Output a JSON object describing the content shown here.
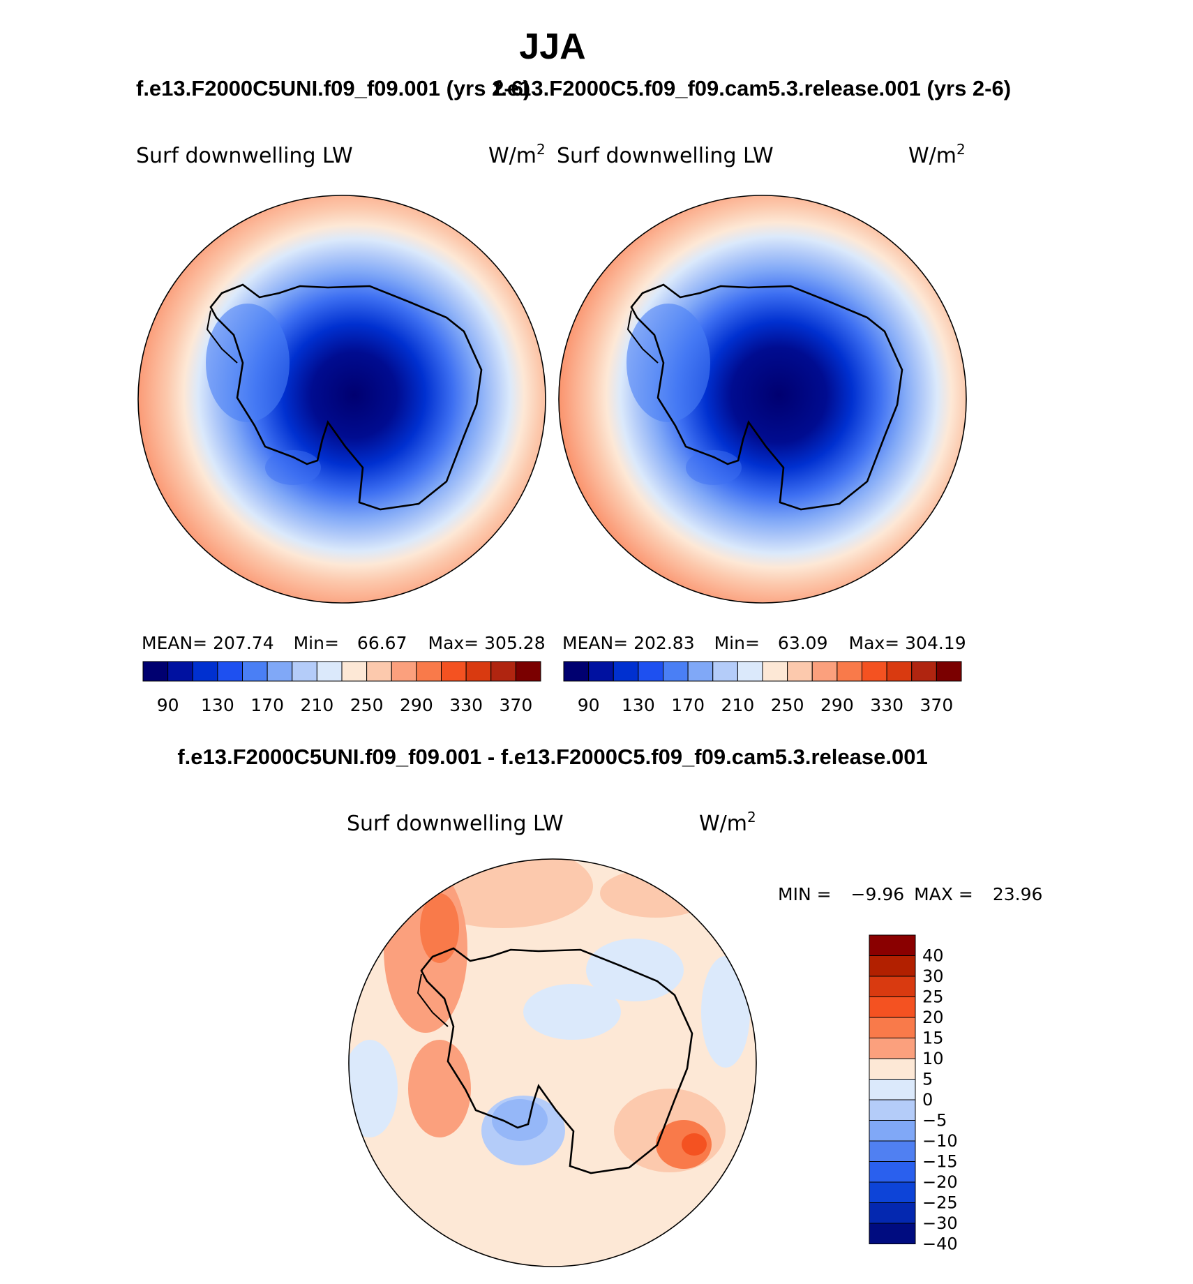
{
  "chart_data": {
    "type": "heatmap",
    "title": "JJA",
    "left_case": "f.e13.F2000C5UNI.f09_f09.001 (yrs 2-6)",
    "right_case": "f.e13.F2000C5.f09_f09.cam5.3.release.001 (yrs 2-6)",
    "diff_title": "f.e13.F2000C5UNI.f09_f09.001 - f.e13.F2000C5.f09_f09.cam5.3.release.001",
    "panels": [
      {
        "variable": "Surf downwelling LW",
        "units": "W/m",
        "units_sup": "2",
        "stats": {
          "mean_label": "MEAN=",
          "mean": "207.74",
          "min_label": "Min=",
          "min": "66.67",
          "max_label": "Max=",
          "max": "305.28"
        }
      },
      {
        "variable": "Surf downwelling LW",
        "units": "W/m",
        "units_sup": "2",
        "stats": {
          "mean_label": "MEAN=",
          "mean": "202.83",
          "min_label": "Min=",
          "min": "63.09",
          "max_label": "Max=",
          "max": "304.19"
        }
      }
    ],
    "abs_colorbar": {
      "tick_labels": [
        "90",
        "130",
        "170",
        "210",
        "250",
        "290",
        "330",
        "370"
      ],
      "colors": [
        "#000070",
        "#0011a0",
        "#0030d0",
        "#1e50f0",
        "#4a7ff5",
        "#80a8f7",
        "#b4ccf9",
        "#dbe9fb",
        "#fde8d6",
        "#fcc9ad",
        "#fba07d",
        "#f97a4a",
        "#f45221",
        "#d93a10",
        "#b02510",
        "#7a0000"
      ]
    },
    "diff": {
      "variable": "Surf downwelling LW",
      "units": "W/m",
      "units_sup": "2",
      "min_label": "MIN =",
      "min": "−9.96",
      "max_label": "MAX =",
      "max": "23.96",
      "colorbar_labels": [
        "40",
        "30",
        "25",
        "20",
        "15",
        "10",
        "5",
        "0",
        "−5",
        "−10",
        "−15",
        "−20",
        "−25",
        "−30",
        "−40"
      ],
      "colorbar_colors": [
        "#8a0000",
        "#b22000",
        "#d93a10",
        "#f45221",
        "#f97a4a",
        "#fba07d",
        "#fde8d6",
        "#dbe9fb",
        "#b4ccf9",
        "#80a8f7",
        "#5080f2",
        "#2a60ee",
        "#0d44d8",
        "#0428b0",
        "#000c80"
      ]
    }
  }
}
